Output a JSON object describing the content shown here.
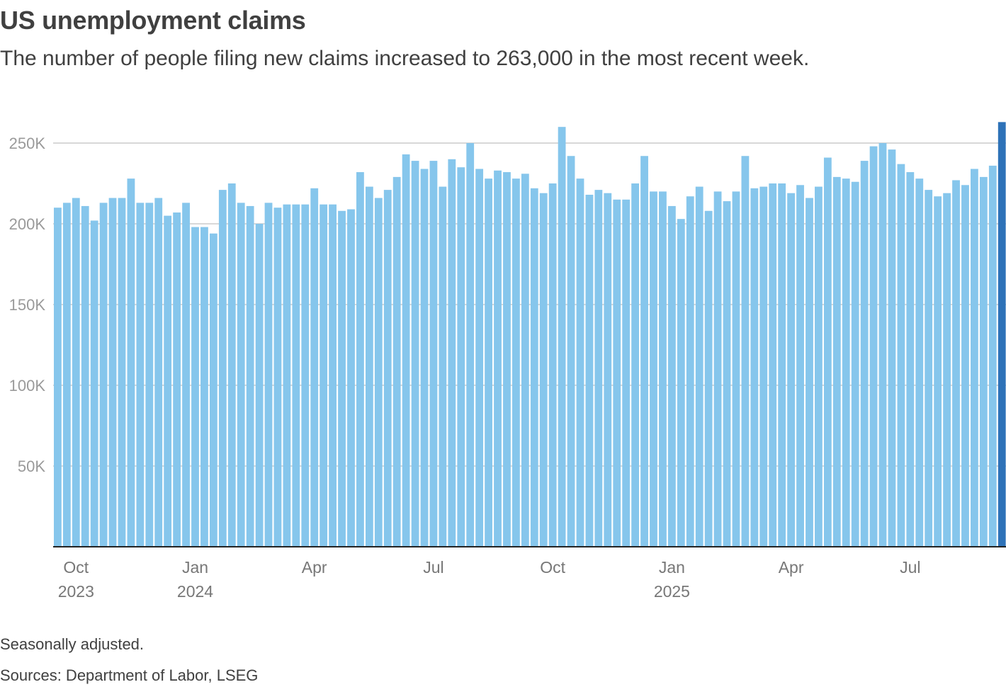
{
  "header": {
    "title": "US unemployment claims",
    "subtitle": "The number of people filing new claims increased to 263,000 in the most recent week."
  },
  "footer": {
    "note": "Seasonally adjusted.",
    "sources": "Sources: Department of Labor, LSEG"
  },
  "colors": {
    "bar": "#86c6ec",
    "highlight_bar": "#2e72b8",
    "grid": "#cccccc",
    "axis": "#222222",
    "tick_text": "#9a9a9a",
    "label_text": "#777777"
  },
  "chart_data": {
    "type": "bar",
    "title": "US unemployment claims",
    "subtitle": "The number of people filing new claims increased to 263,000 in the most recent week.",
    "xlabel": "",
    "ylabel": "",
    "ylim": [
      0,
      263000
    ],
    "y_ticks": [
      {
        "value": 50000,
        "label": "50K"
      },
      {
        "value": 100000,
        "label": "100K"
      },
      {
        "value": 150000,
        "label": "150K"
      },
      {
        "value": 200000,
        "label": "200K"
      },
      {
        "value": 250000,
        "label": "250K"
      }
    ],
    "grid": true,
    "x_ticks": [
      {
        "index": 2,
        "label": "Oct",
        "year": "2023"
      },
      {
        "index": 15,
        "label": "Jan",
        "year": "2024"
      },
      {
        "index": 28,
        "label": "Apr",
        "year": ""
      },
      {
        "index": 41,
        "label": "Jul",
        "year": ""
      },
      {
        "index": 54,
        "label": "Oct",
        "year": ""
      },
      {
        "index": 67,
        "label": "Jan",
        "year": "2025"
      },
      {
        "index": 80,
        "label": "Apr",
        "year": ""
      },
      {
        "index": 93,
        "label": "Jul",
        "year": ""
      }
    ],
    "highlight_index": 103,
    "values": [
      210000,
      213000,
      216000,
      211000,
      202000,
      213000,
      216000,
      216000,
      228000,
      213000,
      213000,
      216000,
      205000,
      207000,
      213000,
      198000,
      198000,
      194000,
      221000,
      225000,
      213000,
      211000,
      200000,
      213000,
      210000,
      212000,
      212000,
      212000,
      222000,
      212000,
      212000,
      208000,
      209000,
      232000,
      223000,
      216000,
      221000,
      229000,
      243000,
      239000,
      234000,
      239000,
      223000,
      240000,
      235000,
      250000,
      234000,
      228000,
      233000,
      232000,
      228000,
      231000,
      222000,
      219000,
      225000,
      260000,
      242000,
      228000,
      218000,
      221000,
      219000,
      215000,
      215000,
      225000,
      242000,
      220000,
      220000,
      211000,
      203000,
      217000,
      223000,
      208000,
      220000,
      214000,
      220000,
      242000,
      222000,
      223000,
      225000,
      225000,
      219000,
      224000,
      216000,
      223000,
      241000,
      229000,
      228000,
      226000,
      239000,
      248000,
      250000,
      246000,
      237000,
      232000,
      228000,
      221000,
      217000,
      219000,
      227000,
      224000,
      234000,
      229000,
      236000,
      263000
    ]
  }
}
